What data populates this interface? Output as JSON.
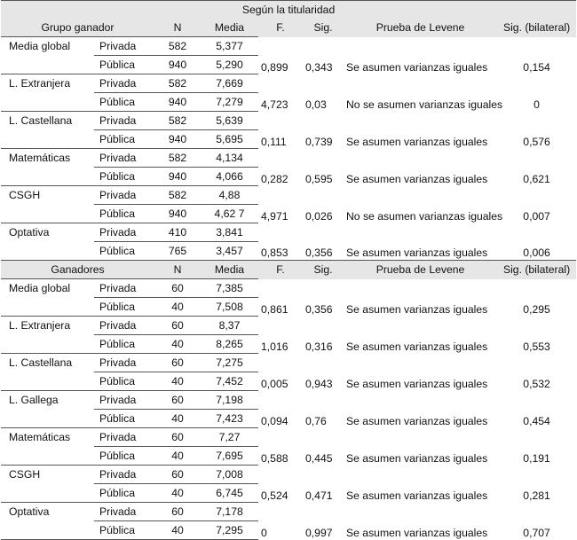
{
  "title": "Según la titularidad",
  "headers1": [
    "Grupo ganador",
    "N",
    "Media",
    "F.",
    "Sig.",
    "Prueba de Levene",
    "Sig. (bilateral)"
  ],
  "groups1": [
    {
      "label": "Media global",
      "r1": {
        "sub": "Privada",
        "n": "582",
        "m": "5,377"
      },
      "r2": {
        "sub": "Pública",
        "n": "940",
        "m": "5,290"
      },
      "f": "0,899",
      "sig": "0,343",
      "lev": "Se asumen varianzas iguales",
      "bil": "0,154"
    },
    {
      "label": "L. Extranjera",
      "r1": {
        "sub": "Privada",
        "n": "582",
        "m": "7,669"
      },
      "r2": {
        "sub": "Pública",
        "n": "940",
        "m": "7,279"
      },
      "f": "4,723",
      "sig": "0,03",
      "lev": "No se asumen varianzas iguales",
      "bil": "0"
    },
    {
      "label": "L. Castellana",
      "r1": {
        "sub": "Privada",
        "n": "582",
        "m": "5,639"
      },
      "r2": {
        "sub": "Pública",
        "n": "940",
        "m": "5,695"
      },
      "f": "0,111",
      "sig": "0,739",
      "lev": "Se asumen varianzas iguales",
      "bil": "0,576"
    },
    {
      "label": "Matemáticas",
      "r1": {
        "sub": "Privada",
        "n": "582",
        "m": "4,134"
      },
      "r2": {
        "sub": "Pública",
        "n": "940",
        "m": "4,066"
      },
      "f": "0,282",
      "sig": "0,595",
      "lev": "Se asumen varianzas iguales",
      "bil": "0,621"
    },
    {
      "label": "CSGH",
      "r1": {
        "sub": "Privada",
        "n": "582",
        "m": "4,88"
      },
      "r2": {
        "sub": "Pública",
        "n": "940",
        "m": "4,62 7"
      },
      "f": "4,971",
      "sig": "0,026",
      "lev": "No se asumen varianzas iguales",
      "bil": "0,007"
    },
    {
      "label": "Optativa",
      "r1": {
        "sub": "Privada",
        "n": "410",
        "m": "3,841"
      },
      "r2": {
        "sub": "Pública",
        "n": "765",
        "m": "3,457"
      },
      "f": "0,853",
      "sig": "0,356",
      "lev": "Se asumen varianzas iguales",
      "bil": "0,006"
    }
  ],
  "headers2": [
    "Ganadores",
    "N",
    "Media",
    "F.",
    "Sig.",
    "Prueba de Levene",
    "Sig. (bilateral)"
  ],
  "groups2": [
    {
      "label": "Media global",
      "r1": {
        "sub": "Privada",
        "n": "60",
        "m": "7,385"
      },
      "r2": {
        "sub": "Pública",
        "n": "40",
        "m": "7,508"
      },
      "f": "0,861",
      "sig": "0,356",
      "lev": "Se asumen varianzas iguales",
      "bil": "0,295"
    },
    {
      "label": "L. Extranjera",
      "r1": {
        "sub": "Privada",
        "n": "60",
        "m": "8,37"
      },
      "r2": {
        "sub": "Pública",
        "n": "40",
        "m": "8,265"
      },
      "f": "1,016",
      "sig": "0,316",
      "lev": "Se asumen varianzas iguales",
      "bil": "0,553"
    },
    {
      "label": "L. Castellana",
      "r1": {
        "sub": "Privada",
        "n": "60",
        "m": "7,275"
      },
      "r2": {
        "sub": "Pública",
        "n": "40",
        "m": "7,452"
      },
      "f": "0,005",
      "sig": "0,943",
      "lev": "Se asumen varianzas iguales",
      "bil": "0,532"
    },
    {
      "label": "L. Gallega",
      "r1": {
        "sub": "Privada",
        "n": "60",
        "m": "7,198"
      },
      "r2": {
        "sub": "Pública",
        "n": "40",
        "m": "7,423"
      },
      "f": "0,094",
      "sig": "0,76",
      "lev": "Se asumen varianzas iguales",
      "bil": "0,454"
    },
    {
      "label": "Matemáticas",
      "r1": {
        "sub": "Privada",
        "n": "60",
        "m": "7,27"
      },
      "r2": {
        "sub": "Pública",
        "n": "40",
        "m": "7,695"
      },
      "f": "0,588",
      "sig": "0,445",
      "lev": "Se asumen varianzas iguales",
      "bil": "0,191"
    },
    {
      "label": "CSGH",
      "r1": {
        "sub": "Privada",
        "n": "60",
        "m": "7,008"
      },
      "r2": {
        "sub": "Pública",
        "n": "40",
        "m": "6,745"
      },
      "f": "0,524",
      "sig": "0,471",
      "lev": "Se asumen varianzas iguales",
      "bil": "0,281"
    },
    {
      "label": "Optativa",
      "r1": {
        "sub": "Privada",
        "n": "60",
        "m": "7,178"
      },
      "r2": {
        "sub": "Pública",
        "n": "40",
        "m": "7,295"
      },
      "f": "0",
      "sig": "0,997",
      "lev": "Se asumen varianzas iguales",
      "bil": "0,707"
    }
  ]
}
